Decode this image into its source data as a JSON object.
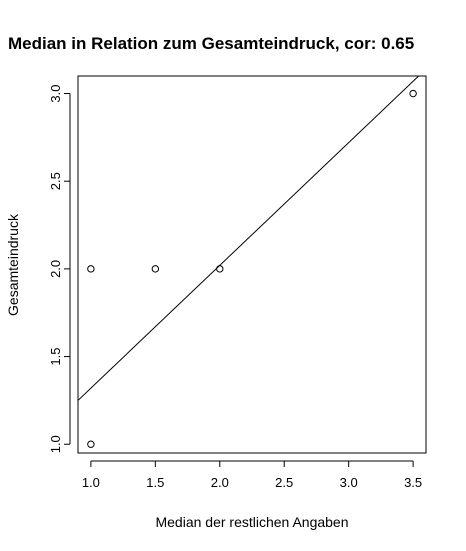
{
  "chart_data": {
    "type": "scatter",
    "title": "Median in Relation zum Gesamteindruck, cor: 0.65",
    "xlabel": "Median der restlichen Angaben",
    "ylabel": "Gesamteindruck",
    "xlim": [
      0.9,
      3.6
    ],
    "ylim": [
      0.95,
      3.1
    ],
    "x_ticks": [
      1.0,
      1.5,
      2.0,
      2.5,
      3.0,
      3.5
    ],
    "x_tick_labels": [
      "1.0",
      "1.5",
      "2.0",
      "2.5",
      "3.0",
      "3.5"
    ],
    "y_ticks": [
      1.0,
      1.5,
      2.0,
      2.5,
      3.0
    ],
    "y_tick_labels": [
      "1.0",
      "1.5",
      "2.0",
      "2.5",
      "3.0"
    ],
    "points": [
      {
        "x": 1.0,
        "y": 2.0
      },
      {
        "x": 1.0,
        "y": 1.0
      },
      {
        "x": 1.5,
        "y": 2.0
      },
      {
        "x": 2.0,
        "y": 2.0
      },
      {
        "x": 3.5,
        "y": 3.0
      }
    ],
    "regression_line": {
      "intercept": 0.62,
      "slope": 0.7
    },
    "grid": false,
    "legend": "none"
  }
}
